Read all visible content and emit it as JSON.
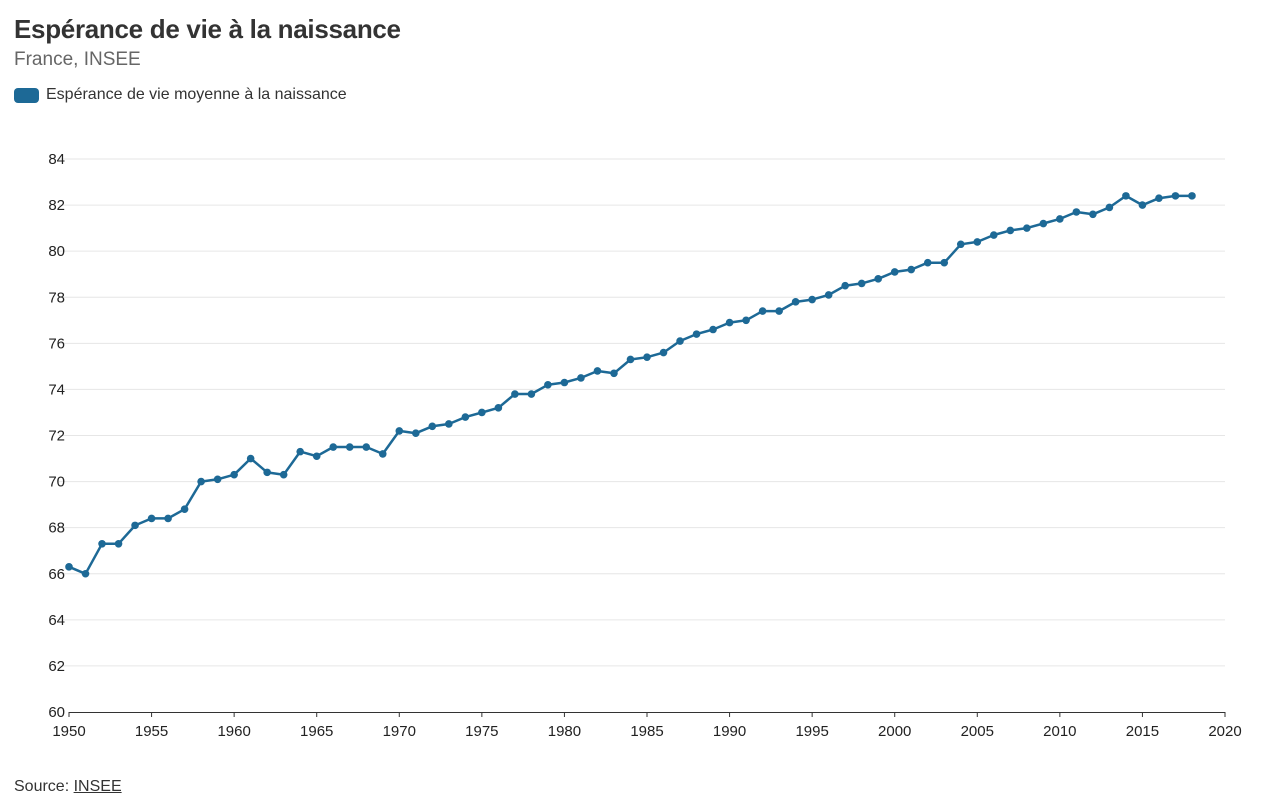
{
  "header": {
    "title": "Espérance de vie à la naissance",
    "subtitle": "France, INSEE"
  },
  "footer": {
    "source_label": "Source:",
    "source_link": "INSEE"
  },
  "colors": {
    "series": "#1d6996",
    "grid": "#e6e6e6",
    "axis": "#333333"
  },
  "chart_data": {
    "type": "line",
    "title": "Espérance de vie à la naissance",
    "subtitle": "France, INSEE",
    "xlabel": "",
    "ylabel": "",
    "xlim": [
      1950,
      2020
    ],
    "ylim": [
      60,
      84
    ],
    "x_ticks": [
      1950,
      1955,
      1960,
      1965,
      1970,
      1975,
      1980,
      1985,
      1990,
      1995,
      2000,
      2005,
      2010,
      2015,
      2020
    ],
    "y_ticks": [
      60,
      62,
      64,
      66,
      68,
      70,
      72,
      74,
      76,
      78,
      80,
      82,
      84
    ],
    "grid": "horizontal",
    "legend_position": "top-left",
    "x": [
      1950,
      1951,
      1952,
      1953,
      1954,
      1955,
      1956,
      1957,
      1958,
      1959,
      1960,
      1961,
      1962,
      1963,
      1964,
      1965,
      1966,
      1967,
      1968,
      1969,
      1970,
      1971,
      1972,
      1973,
      1974,
      1975,
      1976,
      1977,
      1978,
      1979,
      1980,
      1981,
      1982,
      1983,
      1984,
      1985,
      1986,
      1987,
      1988,
      1989,
      1990,
      1991,
      1992,
      1993,
      1994,
      1995,
      1996,
      1997,
      1998,
      1999,
      2000,
      2001,
      2002,
      2003,
      2004,
      2005,
      2006,
      2007,
      2008,
      2009,
      2010,
      2011,
      2012,
      2013,
      2014,
      2015,
      2016,
      2017,
      2018
    ],
    "series": [
      {
        "name": "Espérance de vie moyenne à la naissance",
        "color": "#1d6996",
        "values": [
          66.3,
          66.0,
          67.3,
          67.3,
          68.1,
          68.4,
          68.4,
          68.8,
          70.0,
          70.1,
          70.3,
          71.0,
          70.4,
          70.3,
          71.3,
          71.1,
          71.5,
          71.5,
          71.5,
          71.2,
          72.2,
          72.1,
          72.4,
          72.5,
          72.8,
          73.0,
          73.2,
          73.8,
          73.8,
          74.2,
          74.3,
          74.5,
          74.8,
          74.7,
          75.3,
          75.4,
          75.6,
          76.1,
          76.4,
          76.6,
          76.9,
          77.0,
          77.4,
          77.4,
          77.8,
          77.9,
          78.1,
          78.5,
          78.6,
          78.8,
          79.1,
          79.2,
          79.5,
          79.5,
          80.3,
          80.4,
          80.7,
          80.9,
          81.0,
          81.2,
          81.4,
          81.7,
          81.6,
          81.9,
          82.4,
          82.0,
          82.3,
          82.4,
          82.4
        ]
      }
    ]
  }
}
